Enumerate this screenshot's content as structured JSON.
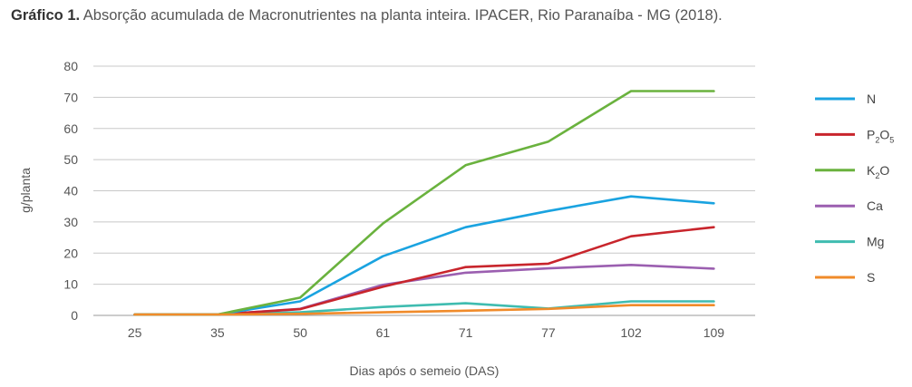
{
  "title_bold": "Gráfico 1.",
  "title_rest": " Absorção acumulada de Macronutrientes na planta inteira. IPACER, Rio Paranaíba - MG (2018).",
  "chart_data": {
    "type": "line",
    "xlabel": "Dias após o semeio (DAS)",
    "ylabel": "g/planta",
    "ylim": [
      0,
      80
    ],
    "yticks": [
      "0",
      "10",
      "20",
      "30",
      "40",
      "50",
      "60",
      "70",
      "80"
    ],
    "categories": [
      "25",
      "35",
      "50",
      "61",
      "71",
      "77",
      "102",
      "109"
    ],
    "grid": true,
    "legend": "right",
    "series": [
      {
        "name": "N",
        "label_main": "N",
        "label_sub1": "",
        "label_mid": "",
        "label_sub2": "",
        "color": "#1aa3e0",
        "values": [
          0.3,
          0.3,
          4.5,
          19,
          28.3,
          33.5,
          38.2,
          36
        ]
      },
      {
        "name": "P2O5",
        "label_main": "P",
        "label_sub1": "2",
        "label_mid": "O",
        "label_sub2": "5",
        "color": "#c8252c",
        "values": [
          0.3,
          0.3,
          2,
          9.2,
          15.5,
          16.6,
          25.4,
          28.3
        ]
      },
      {
        "name": "K2O",
        "label_main": "K",
        "label_sub1": "2",
        "label_mid": "O",
        "label_sub2": "",
        "color": "#6ab23e",
        "values": [
          0.3,
          0.3,
          5.7,
          29.5,
          48.2,
          55.8,
          72,
          72
        ]
      },
      {
        "name": "Ca",
        "label_main": "Ca",
        "label_sub1": "",
        "label_mid": "",
        "label_sub2": "",
        "color": "#9b5fb0",
        "values": [
          0.3,
          0.3,
          2.1,
          9.8,
          13.7,
          15.1,
          16.2,
          15
        ]
      },
      {
        "name": "Mg",
        "label_main": "Mg",
        "label_sub1": "",
        "label_mid": "",
        "label_sub2": "",
        "color": "#3fbcb0",
        "values": [
          0.3,
          0.3,
          1,
          2.7,
          3.9,
          2.2,
          4.5,
          4.5
        ]
      },
      {
        "name": "S",
        "label_main": "S",
        "label_sub1": "",
        "label_mid": "",
        "label_sub2": "",
        "color": "#f08b2a",
        "values": [
          0.3,
          0.3,
          0.5,
          1,
          1.5,
          2.1,
          3.3,
          3.3
        ]
      }
    ]
  }
}
